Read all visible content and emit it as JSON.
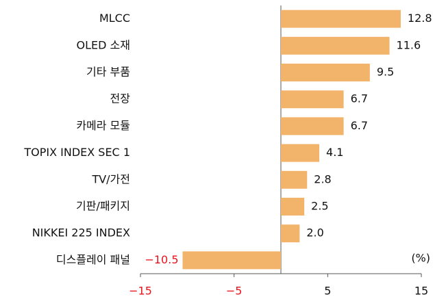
{
  "chart_data": {
    "type": "bar",
    "orientation": "horizontal",
    "categories": [
      "MLCC",
      "OLED 소재",
      "기타 부품",
      "전장",
      "카메라 모듈",
      "TOPIX INDEX SEC 1",
      "TV/가전",
      "기판/패키지",
      "NIKKEI 225 INDEX",
      "디스플레이 패널"
    ],
    "values": [
      12.8,
      11.6,
      9.5,
      6.7,
      6.7,
      4.1,
      2.8,
      2.5,
      2.0,
      -10.5
    ],
    "value_labels": [
      "12.8",
      "11.6",
      "9.5",
      "6.7",
      "6.7",
      "4.1",
      "2.8",
      "2.5",
      "2.0",
      "−10.5"
    ],
    "color": "#f2b36b",
    "negative_label_color": "#e8141c",
    "xlim": [
      -15,
      15
    ],
    "xticks": [
      {
        "value": -15,
        "label": "−15"
      },
      {
        "value": -5,
        "label": "−5"
      },
      5,
      15
    ],
    "unit_label": "(%)"
  }
}
